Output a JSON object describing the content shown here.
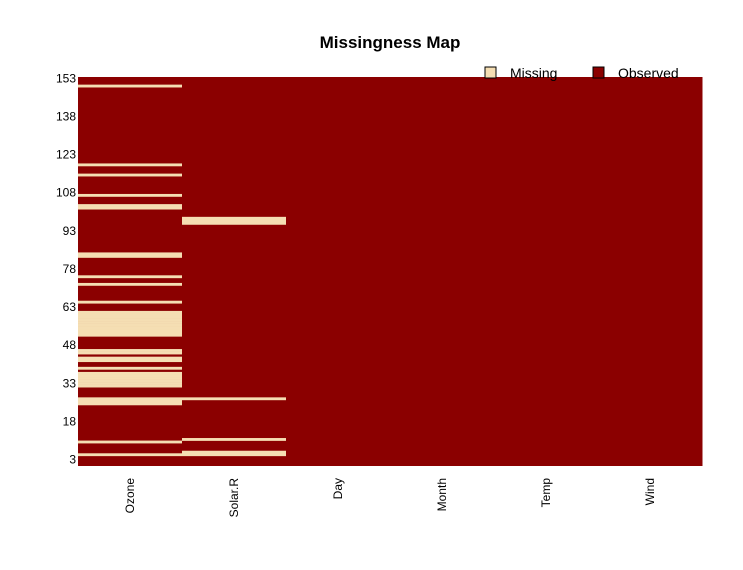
{
  "chart_data": {
    "type": "heatmap",
    "title": "Missingness Map",
    "columns": [
      "Ozone",
      "Solar.R",
      "Day",
      "Month",
      "Temp",
      "Wind"
    ],
    "y_ticks": [
      3,
      18,
      33,
      48,
      63,
      78,
      93,
      108,
      123,
      138,
      153
    ],
    "n_rows": 153,
    "legend": {
      "position": "top-right",
      "items": [
        {
          "label": "Missing",
          "color": "#F5DEB3"
        },
        {
          "label": "Observed",
          "color": "#8B0000"
        }
      ]
    },
    "colors": {
      "missing": "#F5DEB3",
      "observed": "#8B0000"
    },
    "missing_rows": {
      "Ozone": [
        5,
        10,
        25,
        26,
        27,
        32,
        33,
        34,
        35,
        36,
        37,
        39,
        42,
        43,
        45,
        46,
        52,
        53,
        54,
        55,
        56,
        57,
        58,
        59,
        60,
        61,
        65,
        72,
        75,
        83,
        84,
        102,
        103,
        107,
        115,
        119,
        150
      ],
      "Solar.R": [
        5,
        6,
        11,
        27,
        96,
        97,
        98
      ]
    }
  }
}
